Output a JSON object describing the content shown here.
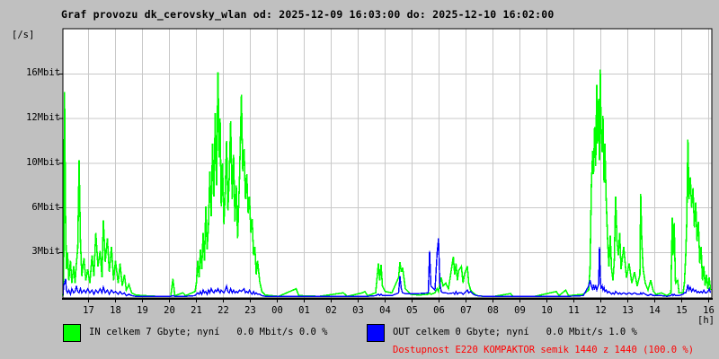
{
  "header": {
    "title": "Graf provozu dk_cerovsky_wlan od: 2025-12-09 16:03:00 do: 2025-12-10 16:02:00"
  },
  "axes": {
    "unit_label": "[/s]",
    "hours_unit_label": "[h]",
    "y_ticks": [
      {
        "label": "3Mbit",
        "value": 3.2
      },
      {
        "label": "6Mbit",
        "value": 6.4
      },
      {
        "label": "10Mbit",
        "value": 9.6
      },
      {
        "label": "12Mbit",
        "value": 12.8
      },
      {
        "label": "16Mbit",
        "value": 16.0
      }
    ],
    "x_ticks": [
      "17",
      "18",
      "19",
      "20",
      "21",
      "22",
      "23",
      "00",
      "01",
      "02",
      "03",
      "04",
      "05",
      "06",
      "07",
      "08",
      "09",
      "10",
      "11",
      "12",
      "13",
      "14",
      "15",
      "16"
    ]
  },
  "legend": {
    "in_label": "IN celkem 7 Gbyte; nyní   0.0 Mbit/s 0.0 %",
    "out_label": "OUT celkem 0 Gbyte; nyní   0.0 Mbit/s 1.0 %",
    "availability": "Dostupnost E220 KOMPAKTOR semik 1440 z 1440 (100.0 %)"
  },
  "colors": {
    "background": "#c0c0c0",
    "plot_bg": "#ffffff",
    "grid": "#c8c8c8",
    "axis": "#000000",
    "in": "#00ff00",
    "out": "#0000ff",
    "availability_text": "#ff0000"
  },
  "chart_data": {
    "type": "line",
    "title": "Graf provozu dk_cerovsky_wlan",
    "time_start": "2025-12-09 16:03:00",
    "time_end": "2025-12-10 16:02:00",
    "x_unit": "hours since start (16:03)",
    "y_unit": "Mbit/s",
    "ylim": [
      0,
      19.2
    ],
    "y_gridlines_mbit": [
      3.2,
      6.4,
      9.6,
      12.8,
      16.0
    ],
    "grid": true,
    "legend_position": "bottom",
    "series": [
      {
        "name": "IN",
        "color": "#00ff00",
        "total": "7 Gbyte",
        "current": "0.0 Mbit/s",
        "percent": "0.0 %"
      },
      {
        "name": "OUT",
        "color": "#0000ff",
        "total": "0 Gbyte",
        "current": "0.0 Mbit/s",
        "percent": "1.0 %"
      }
    ],
    "points": [
      [
        0.0,
        0.1,
        0.1
      ],
      [
        0.03,
        2.0,
        0.8
      ],
      [
        0.06,
        14.7,
        1.0
      ],
      [
        0.1,
        5.5,
        1.3
      ],
      [
        0.13,
        2.0,
        0.5
      ],
      [
        0.17,
        3.2,
        0.3
      ],
      [
        0.22,
        1.2,
        0.5
      ],
      [
        0.28,
        2.6,
        0.2
      ],
      [
        0.33,
        1.0,
        0.6
      ],
      [
        0.4,
        2.2,
        0.3
      ],
      [
        0.45,
        1.0,
        0.4
      ],
      [
        0.5,
        2.4,
        0.8
      ],
      [
        0.55,
        3.5,
        0.4
      ],
      [
        0.6,
        9.8,
        0.3
      ],
      [
        0.65,
        4.0,
        0.6
      ],
      [
        0.7,
        1.5,
        0.3
      ],
      [
        0.78,
        2.8,
        0.5
      ],
      [
        0.85,
        1.2,
        0.3
      ],
      [
        0.92,
        2.0,
        0.6
      ],
      [
        1.0,
        1.0,
        0.3
      ],
      [
        1.08,
        3.0,
        0.5
      ],
      [
        1.15,
        1.5,
        0.2
      ],
      [
        1.22,
        4.6,
        0.5
      ],
      [
        1.3,
        2.2,
        0.3
      ],
      [
        1.38,
        3.3,
        0.6
      ],
      [
        1.45,
        1.4,
        0.3
      ],
      [
        1.5,
        5.5,
        0.7
      ],
      [
        1.57,
        2.5,
        0.3
      ],
      [
        1.65,
        4.2,
        0.5
      ],
      [
        1.72,
        1.8,
        0.2
      ],
      [
        1.8,
        3.6,
        0.5
      ],
      [
        1.88,
        1.2,
        0.3
      ],
      [
        1.95,
        2.6,
        0.4
      ],
      [
        2.05,
        1.0,
        0.2
      ],
      [
        2.12,
        2.4,
        0.4
      ],
      [
        2.2,
        0.8,
        0.2
      ],
      [
        2.28,
        1.6,
        0.3
      ],
      [
        2.35,
        0.5,
        0.1
      ],
      [
        2.45,
        0.9,
        0.2
      ],
      [
        2.55,
        0.3,
        0.1
      ],
      [
        2.7,
        0.15,
        0.05
      ],
      [
        3.0,
        0.1,
        0.05
      ],
      [
        3.5,
        0.05,
        0.05
      ],
      [
        4.0,
        0.05,
        0.05
      ],
      [
        4.08,
        1.3,
        0.1
      ],
      [
        4.15,
        0.1,
        0.05
      ],
      [
        4.45,
        0.3,
        0.05
      ],
      [
        4.55,
        0.1,
        0.05
      ],
      [
        4.9,
        0.4,
        0.1
      ],
      [
        4.95,
        1.0,
        0.2
      ],
      [
        5.0,
        2.6,
        0.3
      ],
      [
        5.05,
        1.4,
        0.2
      ],
      [
        5.1,
        3.4,
        0.4
      ],
      [
        5.15,
        2.0,
        0.2
      ],
      [
        5.2,
        4.6,
        0.5
      ],
      [
        5.25,
        2.6,
        0.3
      ],
      [
        5.3,
        6.5,
        0.4
      ],
      [
        5.35,
        3.4,
        0.2
      ],
      [
        5.4,
        5.2,
        0.5
      ],
      [
        5.45,
        9.0,
        0.3
      ],
      [
        5.5,
        5.8,
        0.6
      ],
      [
        5.55,
        11.0,
        0.4
      ],
      [
        5.6,
        7.2,
        0.3
      ],
      [
        5.65,
        13.2,
        0.5
      ],
      [
        5.7,
        8.0,
        0.4
      ],
      [
        5.75,
        16.1,
        0.6
      ],
      [
        5.8,
        10.0,
        0.4
      ],
      [
        5.83,
        12.8,
        0.3
      ],
      [
        5.87,
        6.5,
        0.5
      ],
      [
        5.92,
        9.6,
        0.4
      ],
      [
        5.97,
        5.2,
        0.3
      ],
      [
        6.02,
        7.6,
        0.5
      ],
      [
        6.07,
        11.2,
        0.8
      ],
      [
        6.12,
        6.2,
        0.4
      ],
      [
        6.17,
        8.6,
        0.3
      ],
      [
        6.22,
        12.6,
        0.6
      ],
      [
        6.28,
        7.0,
        0.3
      ],
      [
        6.33,
        10.2,
        0.5
      ],
      [
        6.38,
        5.4,
        0.3
      ],
      [
        6.43,
        8.0,
        0.4
      ],
      [
        6.48,
        4.2,
        0.3
      ],
      [
        6.55,
        8.5,
        0.5
      ],
      [
        6.62,
        14.5,
        0.4
      ],
      [
        6.67,
        9.0,
        0.5
      ],
      [
        6.72,
        10.6,
        0.6
      ],
      [
        6.77,
        7.0,
        0.3
      ],
      [
        6.82,
        8.8,
        0.4
      ],
      [
        6.87,
        6.0,
        0.3
      ],
      [
        6.92,
        7.2,
        0.5
      ],
      [
        6.97,
        4.6,
        0.3
      ],
      [
        7.02,
        5.6,
        0.2
      ],
      [
        7.07,
        3.0,
        0.4
      ],
      [
        7.12,
        3.6,
        0.2
      ],
      [
        7.17,
        1.6,
        0.3
      ],
      [
        7.22,
        2.6,
        0.2
      ],
      [
        7.3,
        1.1,
        0.2
      ],
      [
        7.38,
        0.4,
        0.1
      ],
      [
        7.5,
        0.15,
        0.05
      ],
      [
        8.0,
        0.05,
        0.05
      ],
      [
        8.65,
        0.6,
        0.05
      ],
      [
        8.75,
        0.1,
        0.05
      ],
      [
        9.5,
        0.05,
        0.05
      ],
      [
        10.4,
        0.3,
        0.05
      ],
      [
        10.55,
        0.05,
        0.05
      ],
      [
        11.1,
        0.3,
        0.05
      ],
      [
        11.2,
        0.4,
        0.05
      ],
      [
        11.3,
        0.1,
        0.05
      ],
      [
        11.6,
        0.3,
        0.1
      ],
      [
        11.7,
        2.4,
        0.2
      ],
      [
        11.75,
        1.2,
        0.1
      ],
      [
        11.8,
        2.3,
        0.2
      ],
      [
        11.85,
        0.8,
        0.1
      ],
      [
        11.95,
        0.4,
        0.1
      ],
      [
        12.2,
        0.3,
        0.1
      ],
      [
        12.45,
        1.4,
        0.3
      ],
      [
        12.5,
        2.5,
        1.5
      ],
      [
        12.55,
        1.8,
        0.6
      ],
      [
        12.6,
        2.1,
        0.3
      ],
      [
        12.7,
        0.6,
        0.25
      ],
      [
        12.9,
        0.2,
        0.25
      ],
      [
        13.2,
        0.15,
        0.25
      ],
      [
        13.55,
        0.2,
        0.3
      ],
      [
        13.6,
        0.3,
        3.3
      ],
      [
        13.65,
        0.2,
        0.8
      ],
      [
        13.8,
        0.3,
        0.5
      ],
      [
        13.88,
        0.6,
        3.2
      ],
      [
        13.93,
        0.4,
        4.2
      ],
      [
        13.98,
        0.9,
        1.0
      ],
      [
        14.03,
        1.4,
        0.4
      ],
      [
        14.1,
        0.8,
        0.3
      ],
      [
        14.2,
        1.0,
        0.3
      ],
      [
        14.3,
        0.6,
        0.25
      ],
      [
        14.48,
        2.9,
        0.3
      ],
      [
        14.53,
        1.6,
        0.2
      ],
      [
        14.58,
        2.4,
        0.4
      ],
      [
        14.63,
        1.2,
        0.2
      ],
      [
        14.68,
        1.9,
        0.3
      ],
      [
        14.78,
        2.2,
        0.3
      ],
      [
        14.84,
        1.0,
        0.2
      ],
      [
        14.9,
        1.7,
        0.3
      ],
      [
        15.0,
        2.2,
        0.5
      ],
      [
        15.05,
        1.0,
        0.3
      ],
      [
        15.12,
        0.5,
        0.4
      ],
      [
        15.22,
        0.3,
        0.2
      ],
      [
        15.35,
        0.1,
        0.1
      ],
      [
        15.6,
        0.05,
        0.05
      ],
      [
        16.0,
        0.05,
        0.05
      ],
      [
        16.6,
        0.25,
        0.05
      ],
      [
        16.7,
        0.05,
        0.05
      ],
      [
        17.5,
        0.05,
        0.05
      ],
      [
        18.3,
        0.4,
        0.05
      ],
      [
        18.4,
        0.1,
        0.05
      ],
      [
        18.65,
        0.5,
        0.05
      ],
      [
        18.75,
        0.1,
        0.05
      ],
      [
        19.3,
        0.2,
        0.1
      ],
      [
        19.5,
        0.5,
        0.8
      ],
      [
        19.55,
        2.0,
        1.2
      ],
      [
        19.6,
        8.0,
        0.8
      ],
      [
        19.65,
        10.5,
        0.5
      ],
      [
        19.68,
        8.8,
        0.9
      ],
      [
        19.72,
        12.2,
        0.6
      ],
      [
        19.76,
        9.4,
        0.8
      ],
      [
        19.8,
        15.2,
        0.5
      ],
      [
        19.83,
        11.0,
        0.7
      ],
      [
        19.87,
        14.2,
        0.9
      ],
      [
        19.9,
        9.8,
        3.6
      ],
      [
        19.93,
        16.3,
        1.5
      ],
      [
        19.96,
        12.0,
        0.6
      ],
      [
        20.0,
        10.4,
        0.8
      ],
      [
        20.03,
        13.0,
        0.5
      ],
      [
        20.07,
        8.2,
        0.7
      ],
      [
        20.1,
        11.0,
        0.4
      ],
      [
        20.15,
        7.0,
        0.5
      ],
      [
        20.2,
        4.2,
        0.3
      ],
      [
        20.25,
        2.2,
        0.4
      ],
      [
        20.3,
        4.4,
        0.3
      ],
      [
        20.35,
        2.0,
        0.2
      ],
      [
        20.4,
        1.2,
        0.3
      ],
      [
        20.45,
        2.6,
        0.2
      ],
      [
        20.5,
        7.2,
        0.4
      ],
      [
        20.55,
        4.0,
        0.3
      ],
      [
        20.6,
        3.0,
        0.2
      ],
      [
        20.65,
        4.6,
        0.3
      ],
      [
        20.7,
        2.0,
        0.2
      ],
      [
        20.8,
        3.6,
        0.3
      ],
      [
        20.9,
        1.4,
        0.2
      ],
      [
        21.0,
        2.4,
        0.3
      ],
      [
        21.1,
        1.0,
        0.2
      ],
      [
        21.2,
        1.8,
        0.3
      ],
      [
        21.3,
        0.8,
        0.2
      ],
      [
        21.4,
        1.6,
        0.2
      ],
      [
        21.43,
        7.4,
        0.3
      ],
      [
        21.47,
        4.0,
        0.2
      ],
      [
        21.52,
        2.0,
        0.3
      ],
      [
        21.6,
        1.0,
        0.2
      ],
      [
        21.7,
        0.5,
        0.1
      ],
      [
        21.8,
        1.2,
        0.2
      ],
      [
        21.9,
        0.4,
        0.1
      ],
      [
        22.0,
        0.2,
        0.1
      ],
      [
        22.2,
        0.3,
        0.1
      ],
      [
        22.4,
        0.1,
        0.05
      ],
      [
        22.55,
        0.3,
        0.1
      ],
      [
        22.6,
        5.7,
        0.2
      ],
      [
        22.63,
        3.0,
        0.1
      ],
      [
        22.67,
        5.3,
        0.2
      ],
      [
        22.72,
        1.0,
        0.1
      ],
      [
        22.8,
        1.2,
        0.1
      ],
      [
        22.85,
        0.3,
        0.1
      ],
      [
        23.0,
        0.3,
        0.2
      ],
      [
        23.05,
        1.0,
        0.3
      ],
      [
        23.1,
        3.0,
        0.3
      ],
      [
        23.14,
        5.5,
        0.5
      ],
      [
        23.18,
        11.3,
        0.9
      ],
      [
        23.22,
        7.0,
        0.5
      ],
      [
        23.27,
        8.6,
        0.7
      ],
      [
        23.32,
        6.4,
        0.4
      ],
      [
        23.37,
        7.8,
        0.6
      ],
      [
        23.42,
        5.0,
        0.4
      ],
      [
        23.47,
        6.8,
        0.5
      ],
      [
        23.52,
        4.0,
        0.3
      ],
      [
        23.57,
        5.4,
        0.4
      ],
      [
        23.62,
        2.4,
        0.3
      ],
      [
        23.67,
        3.6,
        0.4
      ],
      [
        23.72,
        1.2,
        0.3
      ],
      [
        23.77,
        2.2,
        0.5
      ],
      [
        23.82,
        0.8,
        0.3
      ],
      [
        23.87,
        1.6,
        0.3
      ],
      [
        23.92,
        0.6,
        0.4
      ],
      [
        23.97,
        1.4,
        0.6
      ],
      [
        24.02,
        0.5,
        0.3
      ]
    ]
  }
}
